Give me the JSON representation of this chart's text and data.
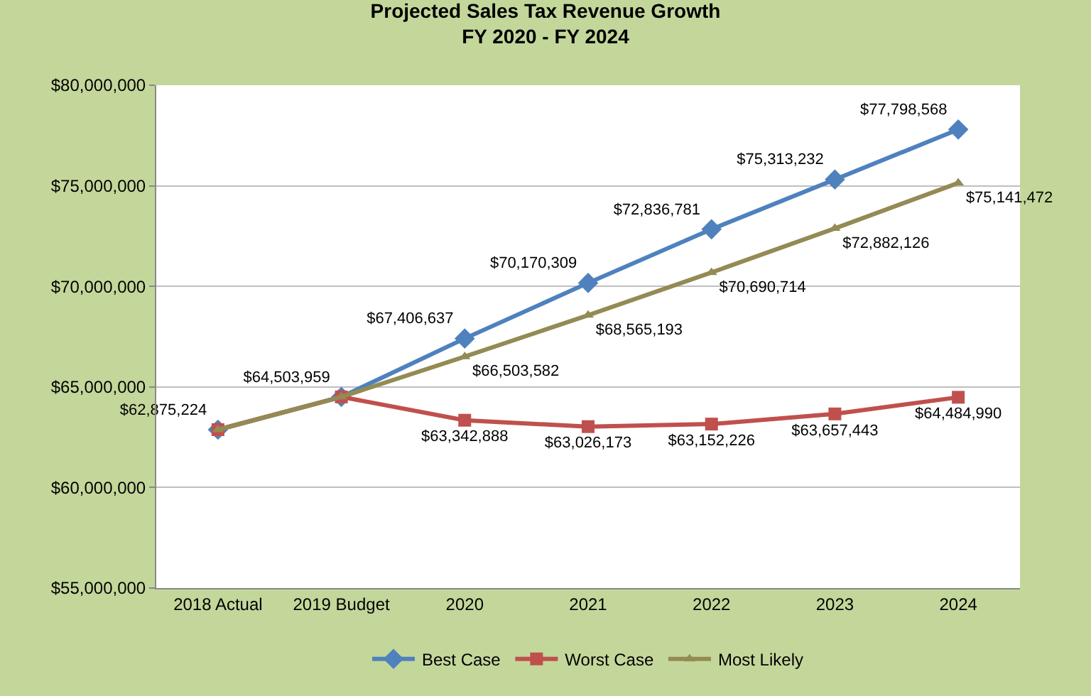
{
  "chart_data": {
    "type": "line",
    "title": "Projected Sales Tax Revenue Growth\nFY 2020 - FY 2024",
    "categories": [
      "2018 Actual",
      "2019 Budget",
      "2020",
      "2021",
      "2022",
      "2023",
      "2024"
    ],
    "series": [
      {
        "name": "Best Case",
        "color": "#4f81bd",
        "marker": "diamond",
        "values": [
          62875224,
          64503959,
          67406637,
          70170309,
          72836781,
          75313232,
          77798568
        ],
        "value_labels": [
          "$62,875,224",
          "$64,503,959",
          "$67,406,637",
          "$70,170,309",
          "$72,836,781",
          "$75,313,232",
          "$77,798,568"
        ]
      },
      {
        "name": "Worst Case",
        "color": "#c0504d",
        "marker": "square",
        "values": [
          62875224,
          64503959,
          63342888,
          63026173,
          63152226,
          63657443,
          64484990
        ],
        "value_labels": [
          null,
          null,
          "$63,342,888",
          "$63,026,173",
          "$63,152,226",
          "$63,657,443",
          "$64,484,990"
        ]
      },
      {
        "name": "Most Likely",
        "color": "#948a54",
        "marker": "triangle",
        "values": [
          62875224,
          64503959,
          66503582,
          68565193,
          70690714,
          72882126,
          75141472
        ],
        "value_labels": [
          null,
          null,
          "$66,503,582",
          "$68,565,193",
          "$70,690,714",
          "$72,882,126",
          "$75,141,472"
        ]
      }
    ],
    "ylim": [
      55000000,
      80000000
    ],
    "yticks": [
      {
        "value": 55000000,
        "label": "$55,000,000"
      },
      {
        "value": 60000000,
        "label": "$60,000,000"
      },
      {
        "value": 65000000,
        "label": "$65,000,000"
      },
      {
        "value": 70000000,
        "label": "$70,000,000"
      },
      {
        "value": 75000000,
        "label": "$75,000,000"
      },
      {
        "value": 80000000,
        "label": "$80,000,000"
      }
    ],
    "grid": "y",
    "legend": "bottom",
    "line_style": "solid"
  }
}
